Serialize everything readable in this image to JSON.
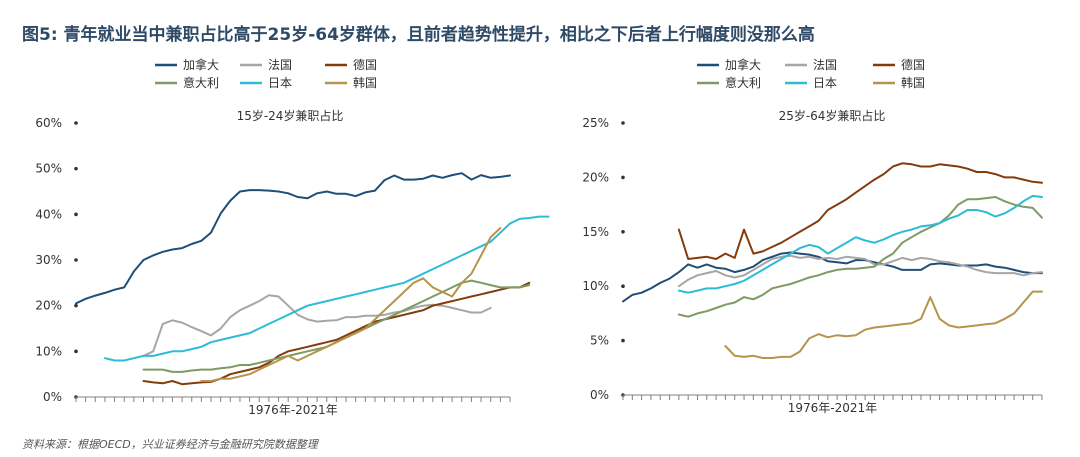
{
  "figure_title": "图5: 青年就业当中兼职占比高于25岁-64岁群体，且前者趋势性提升，相比之下后者上行幅度则没那么高",
  "source_note": "资料来源：根据OECD，兴业证券经济与金融研究院数据整理",
  "colors": {
    "加拿大": "#1f4e79",
    "法国": "#a6a6a6",
    "德国": "#843c0c",
    "意大利": "#7f9a65",
    "日本": "#2dbcd6",
    "韩国": "#b5944d",
    "title": "#2f4a66",
    "axis": "#808080"
  },
  "chart_data": [
    {
      "type": "line",
      "title": "15岁-24岁兼职占比",
      "xlabel": "1976年-2021年",
      "ylabel": "",
      "x_range": [
        1976,
        2021
      ],
      "ylim": [
        0,
        60
      ],
      "yticks": [
        "0%",
        "10%",
        "20%",
        "30%",
        "40%",
        "50%",
        "60%"
      ],
      "legend": [
        "加拿大",
        "法国",
        "德国",
        "意大利",
        "日本",
        "韩国"
      ],
      "series": [
        {
          "name": "加拿大",
          "start": 1976,
          "values": [
            20.5,
            21.5,
            22.2,
            22.8,
            23.5,
            24,
            27.5,
            30,
            31,
            31.8,
            32.3,
            32.6,
            33.5,
            34.2,
            36,
            40.2,
            43,
            45,
            45.3,
            45.3,
            45.2,
            45,
            44.6,
            43.8,
            43.5,
            44.6,
            45,
            44.5,
            44.5,
            44,
            44.8,
            45.2,
            47.5,
            48.5,
            47.6,
            47.6,
            47.8,
            48.5,
            48,
            48.6,
            49,
            47.6,
            48.6,
            48,
            48.2,
            48.5
          ]
        },
        {
          "name": "法国",
          "start": 1983,
          "values": [
            9,
            10,
            16,
            16.8,
            16.3,
            15.3,
            14.4,
            13.5,
            15,
            17.5,
            19,
            20,
            21,
            22.3,
            22,
            20,
            18,
            17,
            16.5,
            16.7,
            16.8,
            17.5,
            17.5,
            17.8,
            17.8,
            18,
            18.5,
            18.8,
            19.5,
            20,
            20.2,
            20,
            19.5,
            19,
            18.5,
            18.5,
            19.5
          ]
        },
        {
          "name": "德国",
          "start": 1983,
          "values": [
            3.5,
            3.2,
            3,
            3.5,
            2.8,
            3,
            3.2,
            3.3,
            4,
            5,
            5.5,
            6,
            6.5,
            7.5,
            9,
            10,
            10.5,
            11,
            11.5,
            12,
            12.5,
            13.5,
            14.5,
            15.5,
            16.5,
            17,
            17.5,
            18,
            18.5,
            19,
            20,
            20.5,
            21,
            21.5,
            22,
            22.5,
            23,
            23.5,
            24,
            24,
            25
          ]
        },
        {
          "name": "意大利",
          "start": 1983,
          "values": [
            6,
            6,
            6,
            5.5,
            5.5,
            5.8,
            6,
            6,
            6.3,
            6.5,
            7,
            7,
            7.5,
            8,
            8.5,
            9,
            9.5,
            10,
            10.5,
            11,
            12,
            13,
            14,
            15,
            16,
            17,
            18,
            19,
            20,
            21,
            22,
            23,
            24,
            25,
            25.5,
            25,
            24.5,
            24,
            24,
            24,
            24.5
          ]
        },
        {
          "name": "日本",
          "start": 1979,
          "values": [
            8.5,
            8,
            8,
            8.5,
            9,
            9,
            9.5,
            10,
            10,
            10.5,
            11,
            12,
            12.5,
            13,
            13.5,
            14,
            15,
            16,
            17,
            18,
            19,
            20,
            20.5,
            21,
            21.5,
            22,
            22.5,
            23,
            23.5,
            24,
            24.5,
            25,
            26,
            27,
            28,
            29,
            30,
            31,
            32,
            33,
            34,
            36,
            38,
            39,
            39.2,
            39.5,
            39.5
          ]
        },
        {
          "name": "韩国",
          "start": 1989,
          "values": [
            3.5,
            3.5,
            4,
            4,
            4.5,
            5,
            6,
            7,
            8,
            9,
            8,
            9,
            10,
            11,
            12,
            13,
            14,
            15,
            17,
            19,
            21,
            23,
            25,
            26,
            24,
            23,
            22,
            25,
            27,
            31,
            35,
            37
          ]
        }
      ]
    },
    {
      "type": "line",
      "title": "25岁-64岁兼职占比",
      "xlabel": "1976年-2021年",
      "ylabel": "",
      "x_range": [
        1976,
        2021
      ],
      "ylim": [
        0,
        25
      ],
      "yticks": [
        "0%",
        "5%",
        "10%",
        "15%",
        "20%",
        "25%"
      ],
      "legend": [
        "加拿大",
        "法国",
        "德国",
        "意大利",
        "日本",
        "韩国"
      ],
      "series": [
        {
          "name": "加拿大",
          "start": 1976,
          "values": [
            8.6,
            9.2,
            9.4,
            9.8,
            10.3,
            10.7,
            11.3,
            12,
            11.7,
            12,
            11.7,
            11.6,
            11.3,
            11.5,
            11.8,
            12.4,
            12.7,
            13,
            13.1,
            13,
            12.9,
            12.7,
            12.3,
            12.2,
            12.1,
            12.4,
            12.4,
            12.2,
            12,
            11.8,
            11.5,
            11.5,
            11.5,
            12,
            12.1,
            12,
            11.9,
            11.9,
            11.9,
            12,
            11.8,
            11.7,
            11.5,
            11.3,
            11.2,
            11.2
          ]
        },
        {
          "name": "法国",
          "start": 1982,
          "values": [
            10,
            10.6,
            11,
            11.2,
            11.4,
            11,
            10.8,
            11,
            11.5,
            12,
            12.5,
            12.7,
            12.8,
            12.6,
            12.7,
            12.5,
            12.6,
            12.5,
            12.7,
            12.6,
            12.5,
            12,
            12,
            12.3,
            12.6,
            12.4,
            12.6,
            12.5,
            12.3,
            12.2,
            12,
            11.8,
            11.5,
            11.3,
            11.2,
            11.2,
            11.2,
            11,
            11.2,
            11.3
          ]
        },
        {
          "name": "德国",
          "start": 1982,
          "values": [
            15.2,
            12.5,
            12.6,
            12.7,
            12.5,
            13,
            12.6,
            15.2,
            13,
            13.2,
            13.6,
            14,
            14.5,
            15,
            15.5,
            16,
            17,
            17.5,
            18,
            18.6,
            19.2,
            19.8,
            20.3,
            21,
            21.3,
            21.2,
            21,
            21,
            21.2,
            21.1,
            21,
            20.8,
            20.5,
            20.5,
            20.3,
            20,
            20,
            19.8,
            19.6,
            19.5
          ]
        },
        {
          "name": "意大利",
          "start": 1982,
          "values": [
            7.4,
            7.2,
            7.5,
            7.7,
            8,
            8.3,
            8.5,
            9,
            8.8,
            9.2,
            9.8,
            10,
            10.2,
            10.5,
            10.8,
            11,
            11.3,
            11.5,
            11.6,
            11.6,
            11.7,
            11.8,
            12.5,
            13,
            14,
            14.5,
            15,
            15.4,
            15.8,
            16.5,
            17.5,
            18,
            18,
            18.1,
            18.2,
            17.8,
            17.5,
            17.3,
            17.2,
            16.3
          ]
        },
        {
          "name": "日本",
          "start": 1982,
          "values": [
            9.6,
            9.4,
            9.6,
            9.8,
            9.8,
            10,
            10.2,
            10.5,
            11,
            11.5,
            12,
            12.5,
            13,
            13.5,
            13.8,
            13.6,
            13,
            13.5,
            14,
            14.5,
            14.2,
            14,
            14.3,
            14.7,
            15,
            15.2,
            15.5,
            15.6,
            15.8,
            16.2,
            16.5,
            17,
            17,
            16.8,
            16.4,
            16.7,
            17.2,
            17.8,
            18.3,
            18.2
          ]
        },
        {
          "name": "韩国",
          "start": 1987,
          "values": [
            4.5,
            3.6,
            3.5,
            3.6,
            3.4,
            3.4,
            3.5,
            3.5,
            4,
            5.2,
            5.6,
            5.3,
            5.5,
            5.4,
            5.5,
            6,
            6.2,
            6.3,
            6.4,
            6.5,
            6.6,
            7,
            9,
            7,
            6.4,
            6.2,
            6.3,
            6.4,
            6.5,
            6.6,
            7,
            7.5,
            8.5,
            9.5,
            9.5
          ]
        }
      ]
    }
  ]
}
